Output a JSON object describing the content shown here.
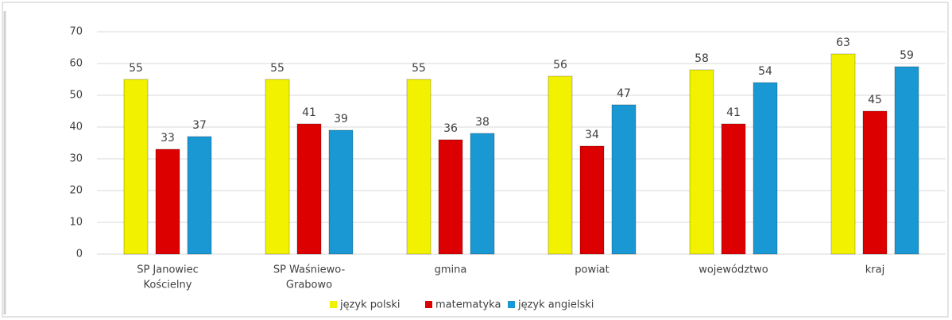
{
  "chart_data": {
    "type": "bar",
    "categories": [
      [
        "SP Janowiec",
        "Kościelny"
      ],
      [
        "SP Waśniewo-",
        "Grabowo"
      ],
      [
        "gmina"
      ],
      [
        "powiat"
      ],
      [
        "województwo"
      ],
      [
        "kraj"
      ]
    ],
    "series": [
      {
        "name": "język polski",
        "color": "#f2f200",
        "values": [
          55,
          55,
          55,
          56,
          58,
          63
        ]
      },
      {
        "name": "matematyka",
        "color": "#dd0000",
        "values": [
          33,
          41,
          36,
          34,
          41,
          45
        ]
      },
      {
        "name": "język angielski",
        "color": "#1a98d4",
        "values": [
          37,
          39,
          38,
          47,
          54,
          59
        ]
      }
    ],
    "ylim": [
      0,
      70
    ],
    "yticks": [
      0,
      10,
      20,
      30,
      40,
      50,
      60,
      70
    ],
    "grid": true,
    "legend": "bottom"
  }
}
